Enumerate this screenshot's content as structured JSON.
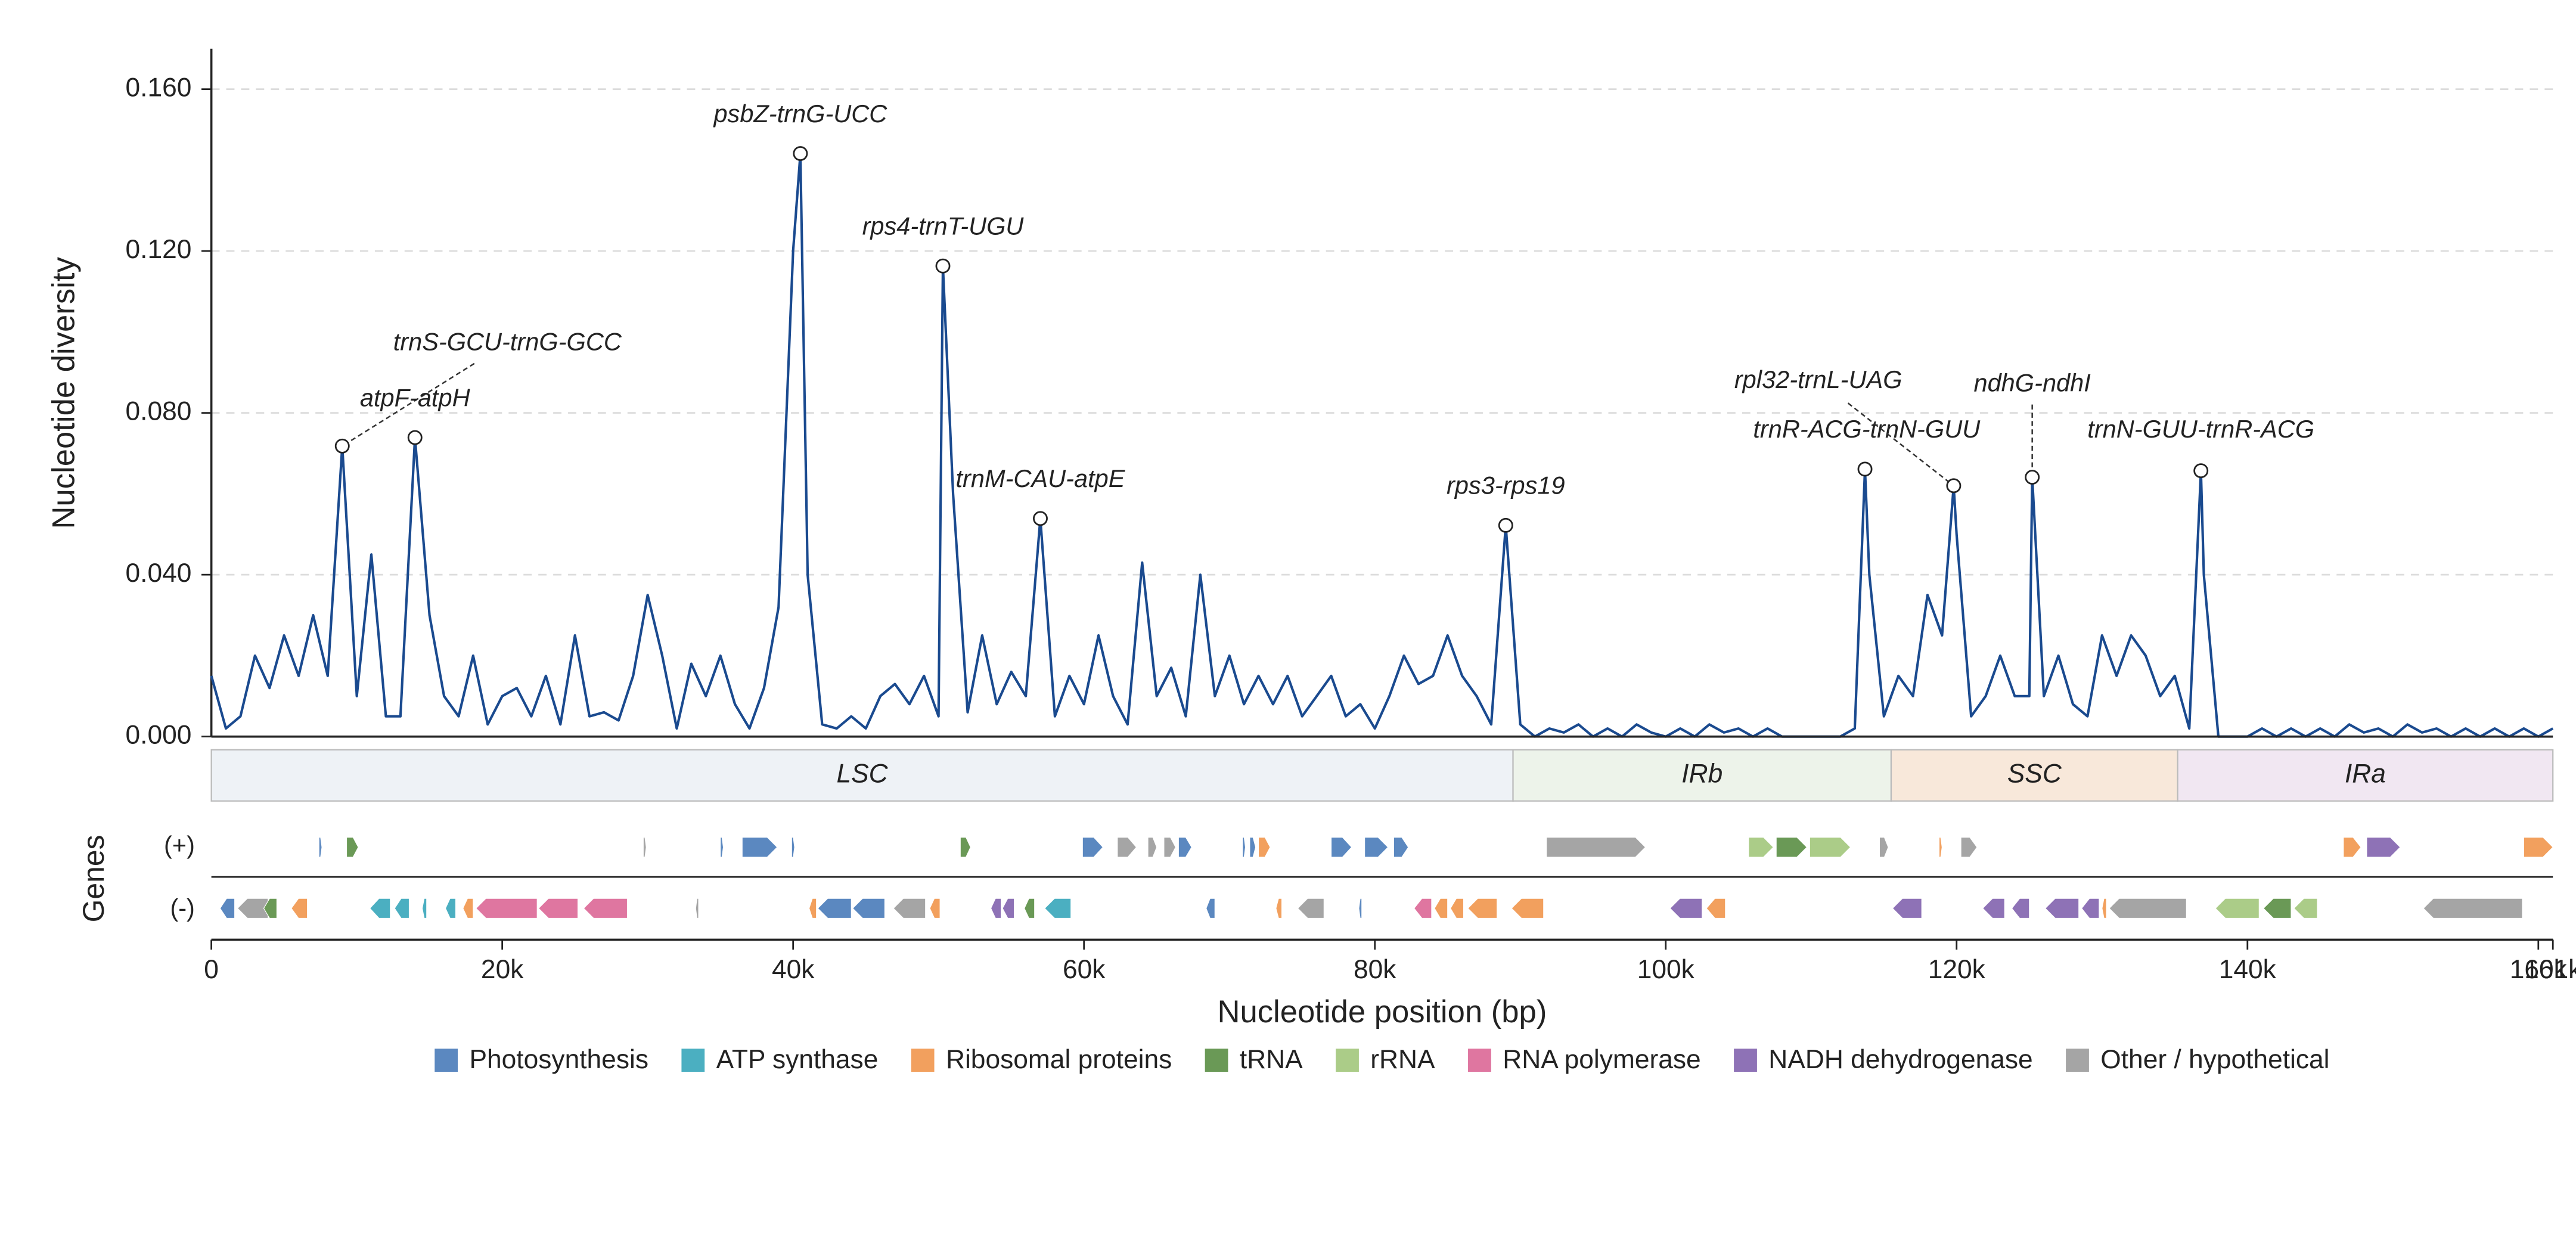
{
  "chart_data": {
    "type": "line",
    "color": "#1a4a8f",
    "grid": true,
    "ylabel": "Nucleotide diversity",
    "xlabel": "Nucleotide position (bp)",
    "track_label": "Genes",
    "plus_label": "(+)",
    "minus_label": "(-)",
    "ylim": [
      0,
      0.17
    ],
    "yticks": [
      {
        "value": 0,
        "label": "0.000"
      },
      {
        "value": 0.04,
        "label": "0.040"
      },
      {
        "value": 0.08,
        "label": "0.080"
      },
      {
        "value": 0.12,
        "label": "0.120"
      },
      {
        "value": 0.16,
        "label": "0.160"
      }
    ],
    "xlim": [
      0,
      161000
    ],
    "xticks": [
      0,
      {
        "value": 20000,
        "label": "20k"
      },
      {
        "value": 40000,
        "label": "40k"
      },
      {
        "value": 60000,
        "label": "60k"
      },
      {
        "value": 80000,
        "label": "80k"
      },
      {
        "value": 100000,
        "label": "100k"
      },
      {
        "value": 120000,
        "label": "120k"
      },
      {
        "value": 140000,
        "label": "140k"
      },
      {
        "value": 160000,
        "label": "160k"
      },
      {
        "value": 161000,
        "label": "161k"
      }
    ],
    "x": [
      0,
      1000,
      2000,
      3000,
      4000,
      5000,
      6000,
      7000,
      8000,
      9000,
      10000,
      11000,
      12000,
      13000,
      14000,
      15000,
      16000,
      17000,
      18000,
      19000,
      20000,
      21000,
      22000,
      23000,
      24000,
      25000,
      26000,
      27000,
      28000,
      29000,
      30000,
      31000,
      32000,
      33000,
      34000,
      35000,
      36000,
      37000,
      38000,
      39000,
      40000,
      40500,
      41000,
      42000,
      43000,
      44000,
      45000,
      46000,
      47000,
      48000,
      49000,
      50000,
      50300,
      51000,
      52000,
      53000,
      54000,
      55000,
      56000,
      57000,
      58000,
      59000,
      60000,
      61000,
      62000,
      63000,
      64000,
      65000,
      66000,
      67000,
      68000,
      69000,
      70000,
      71000,
      72000,
      73000,
      74000,
      75000,
      76000,
      77000,
      78000,
      79000,
      80000,
      81000,
      82000,
      83000,
      84000,
      85000,
      86000,
      87000,
      88000,
      89000,
      90000,
      91000,
      92000,
      93000,
      94000,
      95000,
      96000,
      97000,
      98000,
      99000,
      100000,
      101000,
      102000,
      103000,
      104000,
      105000,
      106000,
      107000,
      108000,
      109000,
      110000,
      111000,
      112000,
      113000,
      113700,
      114000,
      115000,
      116000,
      117000,
      118000,
      119000,
      119800,
      120000,
      121000,
      122000,
      123000,
      124000,
      125000,
      125200,
      126000,
      127000,
      128000,
      129000,
      130000,
      131000,
      132000,
      133000,
      134000,
      135000,
      136000,
      136800,
      137000,
      138000,
      139000,
      140000,
      141000,
      142000,
      143000,
      144000,
      145000,
      146000,
      147000,
      148000,
      149000,
      150000,
      151000,
      152000,
      153000,
      154000,
      155000,
      156000,
      157000,
      158000,
      159000,
      160000,
      161000
    ],
    "values": [
      0.015,
      0.002,
      0.005,
      0.02,
      0.012,
      0.025,
      0.015,
      0.03,
      0.015,
      0.0718,
      0.01,
      0.045,
      0.005,
      0.005,
      0.0739,
      0.03,
      0.01,
      0.005,
      0.02,
      0.003,
      0.01,
      0.012,
      0.005,
      0.015,
      0.003,
      0.025,
      0.005,
      0.006,
      0.004,
      0.015,
      0.035,
      0.02,
      0.002,
      0.018,
      0.01,
      0.02,
      0.008,
      0.002,
      0.012,
      0.032,
      0.12,
      0.1441,
      0.04,
      0.003,
      0.002,
      0.005,
      0.002,
      0.01,
      0.013,
      0.008,
      0.015,
      0.005,
      0.1163,
      0.06,
      0.006,
      0.025,
      0.008,
      0.016,
      0.01,
      0.0539,
      0.005,
      0.015,
      0.008,
      0.025,
      0.01,
      0.003,
      0.043,
      0.01,
      0.017,
      0.005,
      0.04,
      0.01,
      0.02,
      0.008,
      0.015,
      0.008,
      0.015,
      0.005,
      0.01,
      0.015,
      0.005,
      0.008,
      0.002,
      0.01,
      0.02,
      0.013,
      0.015,
      0.025,
      0.015,
      0.01,
      0.003,
      0.0522,
      0.003,
      0,
      0.002,
      0.001,
      0.003,
      0,
      0.002,
      0,
      0.003,
      0.001,
      0,
      0.002,
      0,
      0.003,
      0.001,
      0.002,
      0,
      0.002,
      0,
      0,
      0,
      0,
      0,
      0.002,
      0.0661,
      0.04,
      0.005,
      0.015,
      0.01,
      0.035,
      0.025,
      0.062,
      0.05,
      0.005,
      0.01,
      0.02,
      0.01,
      0.01,
      0.0641,
      0.01,
      0.02,
      0.008,
      0.005,
      0.025,
      0.015,
      0.025,
      0.02,
      0.01,
      0.015,
      0.002,
      0.0657,
      0.04,
      0,
      0,
      0,
      0.002,
      0,
      0.002,
      0,
      0.002,
      0,
      0.003,
      0.001,
      0.002,
      0,
      0.003,
      0.001,
      0.002,
      0,
      0.002,
      0,
      0.002,
      0,
      0.002,
      0,
      0.002
    ],
    "annotations": [
      {
        "text": "trnS-GCU-trnG-GCC",
        "x": 9000,
        "y": 0.0718
      },
      {
        "text": "atpF-atpH",
        "x": 14000,
        "y": 0.0739
      },
      {
        "text": "psbZ-trnG-UCC",
        "x": 40500,
        "y": 0.1441
      },
      {
        "text": "rps4-trnT-UGU",
        "x": 50300,
        "y": 0.1163
      },
      {
        "text": "trnM-CAU-atpE",
        "x": 57000,
        "y": 0.0539
      },
      {
        "text": "rps3-rps19",
        "x": 89000,
        "y": 0.0522
      },
      {
        "text": "trnR-ACG-trnN-GUU",
        "x": 113700,
        "y": 0.0661
      },
      {
        "text": "rpl32-trnL-UAG",
        "x": 119800,
        "y": 0.062
      },
      {
        "text": "ndhG-ndhI",
        "x": 125200,
        "y": 0.0641
      },
      {
        "text": "trnN-GUU-trnR-ACG",
        "x": 136800,
        "y": 0.0657
      }
    ],
    "regions": [
      {
        "name": "LSC",
        "start": 0,
        "end": 89500,
        "color": "#eef2f6"
      },
      {
        "name": "IRb",
        "start": 89500,
        "end": 115500,
        "color": "#edf3ea"
      },
      {
        "name": "SSC",
        "start": 115500,
        "end": 135200,
        "color": "#f8e8da"
      },
      {
        "name": "IRa",
        "start": 135200,
        "end": 161000,
        "color": "#f1e7f2"
      }
    ],
    "legend": [
      {
        "name": "Photosynthesis",
        "color": "#5b88c0"
      },
      {
        "name": "ATP synthase",
        "color": "#4bafc1"
      },
      {
        "name": "Ribosomal proteins",
        "color": "#f2a05e"
      },
      {
        "name": "tRNA",
        "color": "#6a9956"
      },
      {
        "name": "rRNA",
        "color": "#abcc88"
      },
      {
        "name": "RNA polymerase",
        "color": "#df76a0"
      },
      {
        "name": "NADH dehydrogenase",
        "color": "#8e72b6"
      },
      {
        "name": "Other / hypothetical",
        "color": "#a5a5a5"
      }
    ],
    "genes": [
      {
        "start": 7400,
        "end": 7600,
        "strand": "+",
        "category": "Photosynthesis"
      },
      {
        "start": 9300,
        "end": 10100,
        "strand": "+",
        "category": "tRNA"
      },
      {
        "start": 29700,
        "end": 29900,
        "strand": "+",
        "category": "Other / hypothetical"
      },
      {
        "start": 35000,
        "end": 35200,
        "strand": "+",
        "category": "Photosynthesis"
      },
      {
        "start": 36500,
        "end": 38900,
        "strand": "+",
        "category": "Photosynthesis"
      },
      {
        "start": 39900,
        "end": 40100,
        "strand": "+",
        "category": "Photosynthesis"
      },
      {
        "start": 51500,
        "end": 52200,
        "strand": "+",
        "category": "tRNA"
      },
      {
        "start": 59900,
        "end": 61300,
        "strand": "+",
        "category": "Photosynthesis"
      },
      {
        "start": 62300,
        "end": 63600,
        "strand": "+",
        "category": "Other / hypothetical"
      },
      {
        "start": 64400,
        "end": 65000,
        "strand": "+",
        "category": "Other / hypothetical"
      },
      {
        "start": 65500,
        "end": 66300,
        "strand": "+",
        "category": "Other / hypothetical"
      },
      {
        "start": 66500,
        "end": 67400,
        "strand": "+",
        "category": "Photosynthesis"
      },
      {
        "start": 70900,
        "end": 71100,
        "strand": "+",
        "category": "Photosynthesis"
      },
      {
        "start": 71400,
        "end": 71800,
        "strand": "+",
        "category": "Photosynthesis"
      },
      {
        "start": 72000,
        "end": 72800,
        "strand": "+",
        "category": "Ribosomal proteins"
      },
      {
        "start": 77000,
        "end": 78400,
        "strand": "+",
        "category": "Photosynthesis"
      },
      {
        "start": 79300,
        "end": 80900,
        "strand": "+",
        "category": "Photosynthesis"
      },
      {
        "start": 81300,
        "end": 82300,
        "strand": "+",
        "category": "Photosynthesis"
      },
      {
        "start": 91800,
        "end": 98600,
        "strand": "+",
        "category": "Other / hypothetical"
      },
      {
        "start": 105700,
        "end": 107400,
        "strand": "+",
        "category": "rRNA"
      },
      {
        "start": 107600,
        "end": 109700,
        "strand": "+",
        "category": "tRNA"
      },
      {
        "start": 109900,
        "end": 112700,
        "strand": "+",
        "category": "rRNA"
      },
      {
        "start": 114700,
        "end": 115300,
        "strand": "+",
        "category": "Other / hypothetical"
      },
      {
        "start": 118800,
        "end": 119000,
        "strand": "+",
        "category": "Ribosomal proteins"
      },
      {
        "start": 120300,
        "end": 121400,
        "strand": "+",
        "category": "Other / hypothetical"
      },
      {
        "start": 146600,
        "end": 147800,
        "strand": "+",
        "category": "Ribosomal proteins"
      },
      {
        "start": 148200,
        "end": 150500,
        "strand": "+",
        "category": "NADH dehydrogenase"
      },
      {
        "start": 159000,
        "end": 161000,
        "strand": "+",
        "category": "Ribosomal proteins"
      },
      {
        "start": 600,
        "end": 1600,
        "strand": "-",
        "category": "Photosynthesis"
      },
      {
        "start": 1800,
        "end": 3900,
        "strand": "-",
        "category": "Other / hypothetical"
      },
      {
        "start": 3600,
        "end": 4500,
        "strand": "-",
        "category": "tRNA"
      },
      {
        "start": 5500,
        "end": 6600,
        "strand": "-",
        "category": "Ribosomal proteins"
      },
      {
        "start": 10900,
        "end": 12300,
        "strand": "-",
        "category": "ATP synthase"
      },
      {
        "start": 12600,
        "end": 13600,
        "strand": "-",
        "category": "ATP synthase"
      },
      {
        "start": 14500,
        "end": 14800,
        "strand": "-",
        "category": "ATP synthase"
      },
      {
        "start": 16100,
        "end": 16800,
        "strand": "-",
        "category": "ATP synthase"
      },
      {
        "start": 17300,
        "end": 18000,
        "strand": "-",
        "category": "Ribosomal proteins"
      },
      {
        "start": 18200,
        "end": 22400,
        "strand": "-",
        "category": "RNA polymerase"
      },
      {
        "start": 22500,
        "end": 25200,
        "strand": "-",
        "category": "RNA polymerase"
      },
      {
        "start": 25600,
        "end": 28600,
        "strand": "-",
        "category": "RNA polymerase"
      },
      {
        "start": 33300,
        "end": 33500,
        "strand": "-",
        "category": "Other / hypothetical"
      },
      {
        "start": 41100,
        "end": 41600,
        "strand": "-",
        "category": "Ribosomal proteins"
      },
      {
        "start": 41700,
        "end": 44000,
        "strand": "-",
        "category": "Photosynthesis"
      },
      {
        "start": 44100,
        "end": 46300,
        "strand": "-",
        "category": "Photosynthesis"
      },
      {
        "start": 46900,
        "end": 49100,
        "strand": "-",
        "category": "Other / hypothetical"
      },
      {
        "start": 49400,
        "end": 50100,
        "strand": "-",
        "category": "Ribosomal proteins"
      },
      {
        "start": 53600,
        "end": 54300,
        "strand": "-",
        "category": "NADH dehydrogenase"
      },
      {
        "start": 54400,
        "end": 55200,
        "strand": "-",
        "category": "NADH dehydrogenase"
      },
      {
        "start": 55900,
        "end": 56600,
        "strand": "-",
        "category": "tRNA"
      },
      {
        "start": 57300,
        "end": 59100,
        "strand": "-",
        "category": "ATP synthase"
      },
      {
        "start": 68400,
        "end": 69000,
        "strand": "-",
        "category": "Photosynthesis"
      },
      {
        "start": 73200,
        "end": 73600,
        "strand": "-",
        "category": "Ribosomal proteins"
      },
      {
        "start": 74700,
        "end": 76500,
        "strand": "-",
        "category": "Other / hypothetical"
      },
      {
        "start": 78900,
        "end": 79100,
        "strand": "-",
        "category": "Photosynthesis"
      },
      {
        "start": 82700,
        "end": 83900,
        "strand": "-",
        "category": "RNA polymerase"
      },
      {
        "start": 84100,
        "end": 85000,
        "strand": "-",
        "category": "Ribosomal proteins"
      },
      {
        "start": 85200,
        "end": 86100,
        "strand": "-",
        "category": "Ribosomal proteins"
      },
      {
        "start": 86400,
        "end": 88400,
        "strand": "-",
        "category": "Ribosomal proteins"
      },
      {
        "start": 89400,
        "end": 91600,
        "strand": "-",
        "category": "Ribosomal proteins"
      },
      {
        "start": 100300,
        "end": 102500,
        "strand": "-",
        "category": "NADH dehydrogenase"
      },
      {
        "start": 102800,
        "end": 104100,
        "strand": "-",
        "category": "Ribosomal proteins"
      },
      {
        "start": 115600,
        "end": 117600,
        "strand": "-",
        "category": "NADH dehydrogenase"
      },
      {
        "start": 121800,
        "end": 123300,
        "strand": "-",
        "category": "NADH dehydrogenase"
      },
      {
        "start": 123800,
        "end": 125000,
        "strand": "-",
        "category": "NADH dehydrogenase"
      },
      {
        "start": 126100,
        "end": 128400,
        "strand": "-",
        "category": "NADH dehydrogenase"
      },
      {
        "start": 128600,
        "end": 129800,
        "strand": "-",
        "category": "NADH dehydrogenase"
      },
      {
        "start": 130000,
        "end": 130300,
        "strand": "-",
        "category": "Ribosomal proteins"
      },
      {
        "start": 130500,
        "end": 135800,
        "strand": "-",
        "category": "Other / hypothetical"
      },
      {
        "start": 137800,
        "end": 140800,
        "strand": "-",
        "category": "rRNA"
      },
      {
        "start": 141100,
        "end": 143000,
        "strand": "-",
        "category": "tRNA"
      },
      {
        "start": 143200,
        "end": 144800,
        "strand": "-",
        "category": "rRNA"
      },
      {
        "start": 152100,
        "end": 158900,
        "strand": "-",
        "category": "Other / hypothetical"
      }
    ]
  }
}
